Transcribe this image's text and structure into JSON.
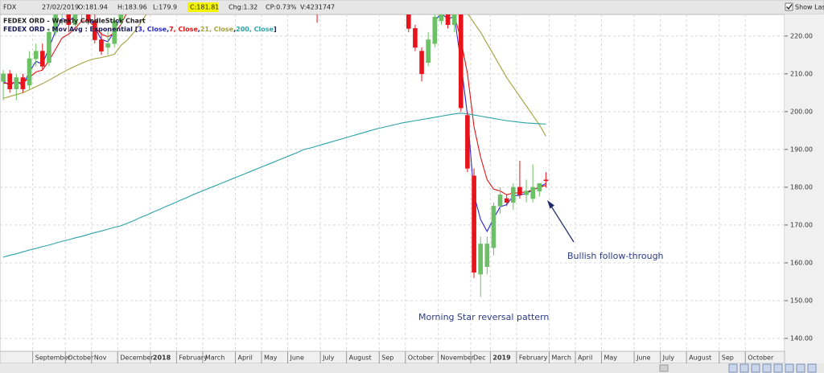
{
  "toolbar": {
    "symbol": "FDX",
    "date": "27/02/2019",
    "open": "O:181.94",
    "high": "H:183.96",
    "low": "L:179.9",
    "close": "C:181.81",
    "change": "Chg:1.32",
    "change_pct": "CP:0.73%",
    "volume": "V:4231747",
    "show_last": "Show Last"
  },
  "chart_data": {
    "type": "candlestick",
    "title": "FEDEX ORD - Weekly CandleStick Chart",
    "legend_prefix": "FEDEX ORD - Mov Avg : Exponential [",
    "legend_separator": ",",
    "legend_suffix": "]",
    "categories": [
      null,
      null,
      null,
      null,
      null,
      "September",
      null,
      null,
      null,
      null,
      "October",
      null,
      null,
      null,
      "Nov",
      null,
      null,
      null,
      "December",
      null,
      null,
      null,
      null,
      "2018",
      null,
      null,
      null,
      "February",
      null,
      null,
      null,
      "March",
      null,
      null,
      null,
      null,
      "April",
      null,
      null,
      null,
      "May",
      null,
      null,
      null,
      "June",
      null,
      null,
      null,
      null,
      "July",
      null,
      null,
      null,
      "August",
      null,
      null,
      null,
      null,
      "Sep",
      null,
      null,
      null,
      "October",
      null,
      null,
      null,
      null,
      "November",
      null,
      null,
      null,
      null,
      "Dec",
      null,
      null,
      "2019",
      null,
      null,
      null,
      "February",
      null,
      null,
      null,
      null,
      "March",
      null,
      null,
      null,
      "April",
      null,
      null,
      null,
      "May",
      null,
      null,
      null,
      null,
      "June",
      null,
      null,
      null,
      "July",
      null,
      null,
      null,
      "August",
      null,
      null,
      null,
      null,
      "Sep",
      null,
      null,
      null,
      "October",
      null,
      null,
      null,
      null,
      null
    ],
    "candles": {
      "up_color": "#6cc065",
      "down_color": "#e8141c",
      "open": [
        208,
        210,
        206,
        209,
        207,
        214,
        216,
        213,
        221,
        226,
        228,
        223,
        227,
        229,
        224,
        219,
        217,
        218,
        224,
        230,
        null,
        null,
        null,
        null,
        null,
        null,
        null,
        null,
        null,
        null,
        null,
        null,
        null,
        null,
        null,
        null,
        null,
        null,
        null,
        null,
        null,
        null,
        null,
        null,
        null,
        null,
        null,
        null,
        230,
        null,
        null,
        null,
        null,
        null,
        null,
        null,
        null,
        null,
        null,
        null,
        null,
        null,
        227,
        222,
        216,
        213,
        218,
        224,
        228,
        223,
        226,
        199,
        183,
        157,
        159,
        164,
        175,
        177,
        176,
        180,
        178,
        177,
        179,
        181.94,
        null,
        null,
        null,
        null,
        null,
        null,
        null,
        null,
        null,
        null,
        null,
        null,
        null,
        null,
        null,
        null,
        null,
        null,
        null,
        null,
        null,
        null,
        null,
        null,
        null,
        null,
        null,
        null,
        null,
        null,
        null,
        null,
        null,
        null,
        null,
        null
      ],
      "high": [
        211,
        211,
        210,
        210,
        216,
        218,
        218,
        222,
        228,
        230,
        232,
        228,
        231,
        231,
        226,
        221,
        222,
        225,
        232,
        236,
        null,
        null,
        null,
        null,
        null,
        null,
        null,
        null,
        null,
        null,
        null,
        null,
        null,
        null,
        null,
        null,
        null,
        null,
        null,
        null,
        null,
        null,
        null,
        null,
        null,
        null,
        null,
        null,
        235,
        null,
        null,
        null,
        null,
        null,
        null,
        null,
        null,
        null,
        null,
        null,
        null,
        null,
        228,
        223,
        217,
        221,
        226,
        229,
        230,
        228,
        227,
        200,
        185,
        167,
        167,
        176,
        180,
        178,
        181,
        187,
        182,
        186,
        181,
        183.96,
        null,
        null,
        null,
        null,
        null,
        null,
        null,
        null,
        null,
        null,
        null,
        null,
        null,
        null,
        null,
        null,
        null,
        null,
        null,
        null,
        null,
        null,
        null,
        null,
        null,
        null,
        null,
        null,
        null,
        null,
        null,
        null,
        null,
        null,
        null,
        null
      ],
      "low": [
        203,
        205,
        203,
        205,
        206,
        212,
        211,
        212,
        220,
        223,
        221,
        222,
        224,
        223,
        218,
        215,
        215,
        217,
        223,
        229,
        null,
        null,
        null,
        null,
        null,
        null,
        null,
        null,
        null,
        null,
        null,
        null,
        null,
        null,
        null,
        null,
        null,
        null,
        null,
        null,
        null,
        null,
        null,
        null,
        null,
        null,
        null,
        null,
        223.5,
        null,
        null,
        null,
        null,
        null,
        null,
        null,
        null,
        null,
        null,
        null,
        null,
        null,
        221,
        216,
        208,
        212,
        217,
        223,
        222,
        221,
        200,
        184,
        156,
        151,
        157,
        162,
        173,
        175,
        174,
        177,
        176,
        176,
        177.5,
        179.9,
        null,
        null,
        null,
        null,
        null,
        null,
        null,
        null,
        null,
        null,
        null,
        null,
        null,
        null,
        null,
        null,
        null,
        null,
        null,
        null,
        null,
        null,
        null,
        null,
        null,
        null,
        null,
        null,
        null,
        null,
        null,
        null,
        null,
        null,
        null,
        null
      ],
      "close": [
        210,
        206,
        209,
        206,
        214,
        216,
        212,
        221,
        226,
        228,
        223,
        227,
        229,
        224,
        219,
        216,
        218,
        224,
        230,
        235,
        null,
        null,
        null,
        null,
        null,
        null,
        null,
        null,
        null,
        null,
        null,
        null,
        null,
        null,
        null,
        null,
        null,
        null,
        null,
        null,
        null,
        null,
        null,
        null,
        null,
        null,
        null,
        null,
        228,
        null,
        null,
        null,
        null,
        null,
        null,
        null,
        null,
        null,
        null,
        null,
        null,
        null,
        222,
        217,
        210,
        219,
        225,
        227,
        223,
        226,
        201,
        185,
        157.5,
        165,
        165,
        175,
        178,
        176,
        180,
        178,
        179,
        180,
        181,
        181.81,
        null,
        null,
        null,
        null,
        null,
        null,
        null,
        null,
        null,
        null,
        null,
        null,
        null,
        null,
        null,
        null,
        null,
        null,
        null,
        null,
        null,
        null,
        null,
        null,
        null,
        null,
        null,
        null,
        null,
        null,
        null,
        null,
        null,
        null,
        null,
        null
      ]
    },
    "series": [
      {
        "name": "3, Close",
        "color": "#2a2ad0",
        "values": [
          208,
          207,
          208,
          207,
          210.5,
          213.3,
          212.6,
          216.8,
          221.4,
          224.7,
          223.8,
          225.4,
          227.2,
          225.6,
          222.3,
          219.1,
          218.5,
          221.3,
          225.6,
          230,
          null,
          null,
          null,
          null,
          null,
          null,
          null,
          null,
          null,
          null,
          null,
          null,
          null,
          null,
          null,
          null,
          null,
          null,
          null,
          null,
          null,
          null,
          null,
          null,
          null,
          null,
          null,
          null,
          null,
          null,
          null,
          null,
          null,
          null,
          null,
          null,
          null,
          null,
          null,
          null,
          null,
          null,
          null,
          null,
          null,
          null,
          224,
          226,
          224.5,
          225.2,
          213,
          199,
          178,
          171.5,
          168.3,
          171.7,
          174.8,
          175.4,
          177.7,
          177.9,
          178.4,
          179.2,
          180.1,
          181,
          null,
          null,
          null,
          null,
          null,
          null,
          null,
          null,
          null,
          null,
          null,
          null,
          null,
          null,
          null,
          null,
          null,
          null,
          null,
          null,
          null,
          null,
          null,
          null,
          null,
          null,
          null,
          null,
          null,
          null,
          null,
          null,
          null,
          null,
          null,
          null
        ]
      },
      {
        "name": "7, Close",
        "color": "#e01414",
        "values": [
          207.5,
          207.5,
          207.8,
          207.6,
          209,
          210.5,
          211,
          213.5,
          216.5,
          219.5,
          220.5,
          222,
          224,
          224,
          222.5,
          220.5,
          219.8,
          220.8,
          223,
          226.5,
          null,
          null,
          null,
          null,
          null,
          null,
          null,
          null,
          null,
          null,
          null,
          null,
          null,
          null,
          null,
          null,
          null,
          null,
          null,
          null,
          null,
          null,
          null,
          null,
          null,
          null,
          null,
          null,
          null,
          null,
          null,
          null,
          null,
          null,
          null,
          null,
          null,
          null,
          null,
          null,
          null,
          null,
          null,
          null,
          null,
          null,
          null,
          null,
          226,
          225.5,
          219,
          210,
          196,
          188,
          182,
          179.5,
          179,
          178,
          178.5,
          178.5,
          178.8,
          179.3,
          180,
          180.5,
          null,
          null,
          null,
          null,
          null,
          null,
          null,
          null,
          null,
          null,
          null,
          null,
          null,
          null,
          null,
          null,
          null,
          null,
          null,
          null,
          null,
          null,
          null,
          null,
          null,
          null,
          null,
          null,
          null,
          null,
          null,
          null,
          null,
          null,
          null,
          null
        ]
      },
      {
        "name": "21, Close",
        "color": "#a3a23c",
        "values": [
          203.5,
          204,
          204.5,
          205,
          205.8,
          206.6,
          207.4,
          208.3,
          209.3,
          210.3,
          211.2,
          212,
          212.8,
          213.5,
          214,
          214.3,
          214.7,
          215.2,
          217.5,
          219,
          221,
          223.5,
          226,
          null,
          null,
          null,
          null,
          null,
          null,
          null,
          null,
          null,
          null,
          null,
          null,
          null,
          null,
          null,
          null,
          null,
          null,
          null,
          null,
          null,
          null,
          null,
          null,
          null,
          null,
          null,
          null,
          null,
          null,
          null,
          null,
          null,
          null,
          null,
          null,
          null,
          null,
          null,
          null,
          null,
          null,
          null,
          null,
          null,
          null,
          null,
          228,
          226,
          223.5,
          221,
          218,
          215,
          212,
          209,
          206.5,
          204,
          201.5,
          199,
          196.5,
          193.5,
          null,
          null,
          null,
          null,
          null,
          null,
          null,
          null,
          null,
          null,
          null,
          null,
          null,
          null,
          null,
          null,
          null,
          null,
          null,
          null,
          null,
          null,
          null,
          null,
          null,
          null,
          null,
          null,
          null,
          null,
          null,
          null,
          null,
          null,
          null,
          null
        ]
      },
      {
        "name": "200, Close",
        "color": "#2aa3a8",
        "values": [
          161.5,
          162,
          162.4,
          162.9,
          163.4,
          163.8,
          164.3,
          164.7,
          165.2,
          165.7,
          166.1,
          166.6,
          167,
          167.5,
          168,
          168.4,
          168.9,
          169.4,
          169.8,
          170.5,
          171.2,
          172,
          172.7,
          173.5,
          174.2,
          175,
          175.7,
          176.5,
          177.2,
          178,
          178.7,
          179.4,
          180.1,
          180.8,
          181.5,
          182.2,
          182.9,
          183.6,
          184.3,
          185,
          185.7,
          186.4,
          187.1,
          187.8,
          188.5,
          189.2,
          190,
          190.4,
          190.9,
          191.4,
          191.9,
          192.4,
          192.9,
          193.4,
          193.9,
          194.4,
          194.9,
          195.4,
          195.8,
          196.2,
          196.6,
          197,
          197.3,
          197.6,
          197.9,
          198.2,
          198.5,
          198.8,
          199.1,
          199.4,
          199.6,
          199.4,
          199.1,
          198.8,
          198.5,
          198.2,
          197.9,
          197.6,
          197.4,
          197.2,
          197,
          196.9,
          196.8,
          196.7,
          null,
          null,
          null,
          null,
          null,
          null,
          null,
          null,
          null,
          null,
          null,
          null,
          null,
          null,
          null,
          null,
          null,
          null,
          null,
          null,
          null,
          null,
          null,
          null,
          null,
          null,
          null,
          null,
          null,
          null,
          null,
          null,
          null,
          null,
          null,
          null
        ]
      }
    ],
    "ylim": [
      136.6,
      225.7
    ],
    "yticks": [
      {
        "value": 140,
        "label": "140.00"
      },
      {
        "value": 150,
        "label": "150.00"
      },
      {
        "value": 160,
        "label": "160.00"
      },
      {
        "value": 170,
        "label": "170.00"
      },
      {
        "value": 180,
        "label": "180.00"
      },
      {
        "value": 190,
        "label": "190.00"
      },
      {
        "value": 200,
        "label": "200.00"
      },
      {
        "value": 210,
        "label": "210.00"
      },
      {
        "value": 220,
        "label": "220.00"
      }
    ],
    "grid": true,
    "annotations": [
      {
        "text": "Bullish follow-through"
      },
      {
        "text": "Morning Star reversal pattern"
      }
    ]
  }
}
